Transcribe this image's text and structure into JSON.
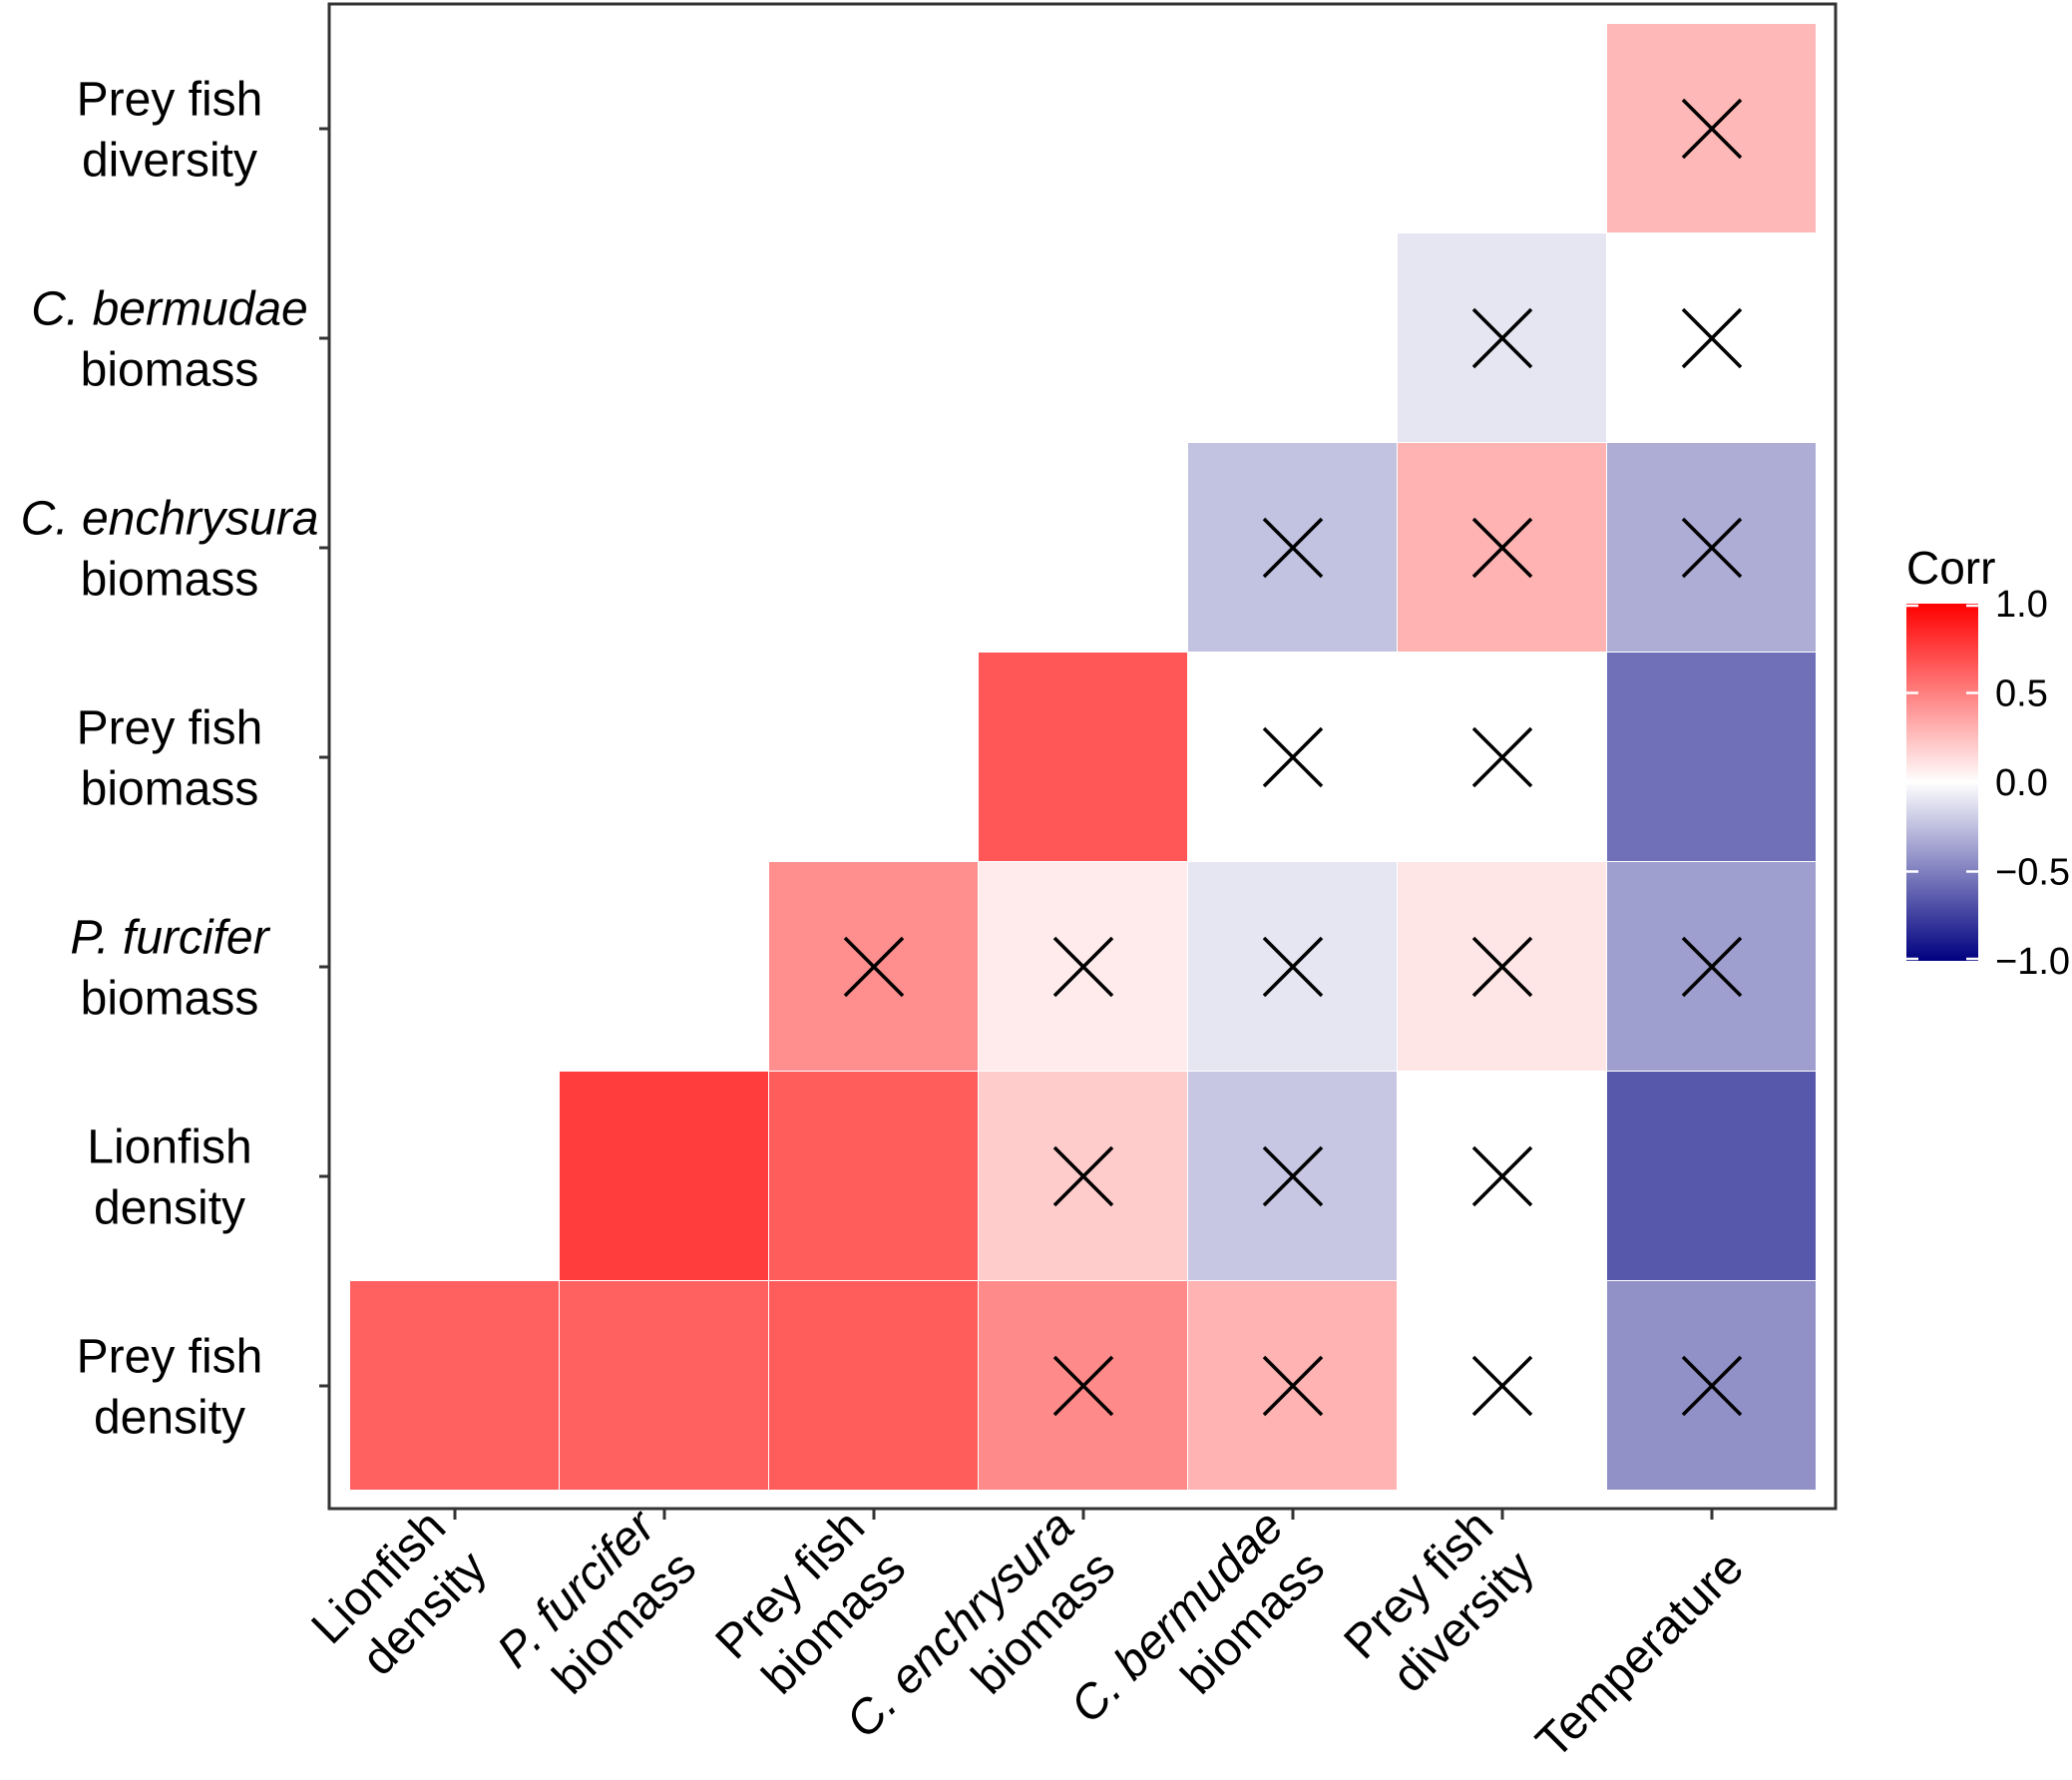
{
  "chart_data": {
    "type": "heatmap",
    "title": "",
    "xlabel": "",
    "ylabel": "",
    "x_categories": [
      {
        "lines": [
          {
            "parts": [
              {
                "t": "Lionfish",
                "i": false
              }
            ]
          },
          {
            "parts": [
              {
                "t": "density",
                "i": false
              }
            ]
          }
        ]
      },
      {
        "lines": [
          {
            "parts": [
              {
                "t": "P. furcifer",
                "i": true
              }
            ]
          },
          {
            "parts": [
              {
                "t": "biomass",
                "i": false
              }
            ]
          }
        ]
      },
      {
        "lines": [
          {
            "parts": [
              {
                "t": "Prey fish",
                "i": false
              }
            ]
          },
          {
            "parts": [
              {
                "t": "biomass",
                "i": false
              }
            ]
          }
        ]
      },
      {
        "lines": [
          {
            "parts": [
              {
                "t": "C. enchrysura",
                "i": true
              }
            ]
          },
          {
            "parts": [
              {
                "t": "biomass",
                "i": false
              }
            ]
          }
        ]
      },
      {
        "lines": [
          {
            "parts": [
              {
                "t": "C. bermudae",
                "i": true
              }
            ]
          },
          {
            "parts": [
              {
                "t": "biomass",
                "i": false
              }
            ]
          }
        ]
      },
      {
        "lines": [
          {
            "parts": [
              {
                "t": "Prey fish",
                "i": false
              }
            ]
          },
          {
            "parts": [
              {
                "t": "diversity",
                "i": false
              }
            ]
          }
        ]
      },
      {
        "lines": [
          {
            "parts": [
              {
                "t": "Temperature",
                "i": false
              }
            ]
          }
        ]
      }
    ],
    "y_categories": [
      {
        "lines": [
          {
            "parts": [
              {
                "t": "Prey fish",
                "i": false
              }
            ]
          },
          {
            "parts": [
              {
                "t": "density",
                "i": false
              }
            ]
          }
        ]
      },
      {
        "lines": [
          {
            "parts": [
              {
                "t": "Lionfish",
                "i": false
              }
            ]
          },
          {
            "parts": [
              {
                "t": "density",
                "i": false
              }
            ]
          }
        ]
      },
      {
        "lines": [
          {
            "parts": [
              {
                "t": "P. furcifer",
                "i": true
              }
            ]
          },
          {
            "parts": [
              {
                "t": "biomass",
                "i": false
              }
            ]
          }
        ]
      },
      {
        "lines": [
          {
            "parts": [
              {
                "t": "Prey fish",
                "i": false
              }
            ]
          },
          {
            "parts": [
              {
                "t": "biomass",
                "i": false
              }
            ]
          }
        ]
      },
      {
        "lines": [
          {
            "parts": [
              {
                "t": "C. enchrysura",
                "i": true
              }
            ]
          },
          {
            "parts": [
              {
                "t": "biomass",
                "i": false
              }
            ]
          }
        ]
      },
      {
        "lines": [
          {
            "parts": [
              {
                "t": "C. bermudae",
                "i": true
              }
            ]
          },
          {
            "parts": [
              {
                "t": "biomass",
                "i": false
              }
            ]
          }
        ]
      },
      {
        "lines": [
          {
            "parts": [
              {
                "t": "Prey fish",
                "i": false
              }
            ]
          },
          {
            "parts": [
              {
                "t": "diversity",
                "i": false
              }
            ]
          }
        ]
      }
    ],
    "cells": [
      {
        "row": 0,
        "col": 0,
        "value": 0.62,
        "crossed": false
      },
      {
        "row": 0,
        "col": 1,
        "value": 0.62,
        "crossed": false
      },
      {
        "row": 0,
        "col": 2,
        "value": 0.64,
        "crossed": false
      },
      {
        "row": 0,
        "col": 3,
        "value": 0.46,
        "crossed": true
      },
      {
        "row": 0,
        "col": 4,
        "value": 0.3,
        "crossed": true
      },
      {
        "row": 0,
        "col": 5,
        "value": 0.0,
        "crossed": true
      },
      {
        "row": 0,
        "col": 6,
        "value": -0.43,
        "crossed": true
      },
      {
        "row": 1,
        "col": 1,
        "value": 0.76,
        "crossed": false
      },
      {
        "row": 1,
        "col": 2,
        "value": 0.64,
        "crossed": false
      },
      {
        "row": 1,
        "col": 3,
        "value": 0.2,
        "crossed": true
      },
      {
        "row": 1,
        "col": 4,
        "value": -0.22,
        "crossed": true
      },
      {
        "row": 1,
        "col": 5,
        "value": 0.0,
        "crossed": true
      },
      {
        "row": 1,
        "col": 6,
        "value": -0.66,
        "crossed": false
      },
      {
        "row": 2,
        "col": 2,
        "value": 0.44,
        "crossed": true
      },
      {
        "row": 2,
        "col": 3,
        "value": 0.08,
        "crossed": true
      },
      {
        "row": 2,
        "col": 4,
        "value": -0.1,
        "crossed": true
      },
      {
        "row": 2,
        "col": 5,
        "value": 0.1,
        "crossed": true
      },
      {
        "row": 2,
        "col": 6,
        "value": -0.38,
        "crossed": true
      },
      {
        "row": 3,
        "col": 3,
        "value": 0.66,
        "crossed": false
      },
      {
        "row": 3,
        "col": 4,
        "value": 0.0,
        "crossed": true
      },
      {
        "row": 3,
        "col": 5,
        "value": 0.0,
        "crossed": true
      },
      {
        "row": 3,
        "col": 6,
        "value": -0.56,
        "crossed": false
      },
      {
        "row": 4,
        "col": 4,
        "value": -0.24,
        "crossed": true
      },
      {
        "row": 4,
        "col": 5,
        "value": 0.3,
        "crossed": true
      },
      {
        "row": 4,
        "col": 6,
        "value": -0.32,
        "crossed": true
      },
      {
        "row": 5,
        "col": 5,
        "value": -0.1,
        "crossed": true
      },
      {
        "row": 5,
        "col": 6,
        "value": 0.0,
        "crossed": true
      },
      {
        "row": 6,
        "col": 6,
        "value": 0.28,
        "crossed": true
      }
    ],
    "legend": {
      "title": "Corr",
      "range": [
        -1.0,
        1.0
      ],
      "ticks": [
        {
          "value": 1.0,
          "label": "1.0"
        },
        {
          "value": 0.5,
          "label": "0.5"
        },
        {
          "value": 0.0,
          "label": "0.0"
        },
        {
          "value": -0.5,
          "label": "−0.5"
        },
        {
          "value": -1.0,
          "label": "−1.0"
        }
      ],
      "placement": "right"
    },
    "colors": {
      "high": "#FF0000",
      "mid": "#FFFFFF",
      "low": "#000080",
      "cross": "#000000",
      "frame": "#333333"
    }
  }
}
